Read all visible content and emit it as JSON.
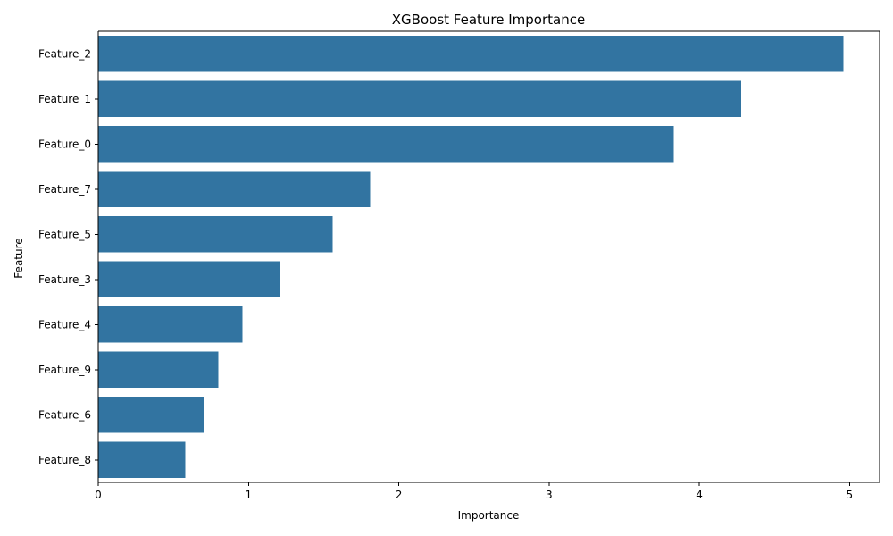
{
  "chart_data": {
    "type": "bar",
    "orientation": "horizontal",
    "title": "XGBoost Feature Importance",
    "xlabel": "Importance",
    "ylabel": "Feature",
    "categories": [
      "Feature_2",
      "Feature_1",
      "Feature_0",
      "Feature_7",
      "Feature_5",
      "Feature_3",
      "Feature_4",
      "Feature_9",
      "Feature_6",
      "Feature_8"
    ],
    "values": [
      4.96,
      4.28,
      3.83,
      1.81,
      1.56,
      1.21,
      0.96,
      0.8,
      0.7,
      0.58
    ],
    "xlim": [
      0,
      5.2
    ],
    "xticks": [
      0,
      1,
      2,
      3,
      4,
      5
    ],
    "grid": false,
    "colors": {
      "bar": "#3274a1",
      "axis": "#000000",
      "background": "#ffffff"
    }
  }
}
